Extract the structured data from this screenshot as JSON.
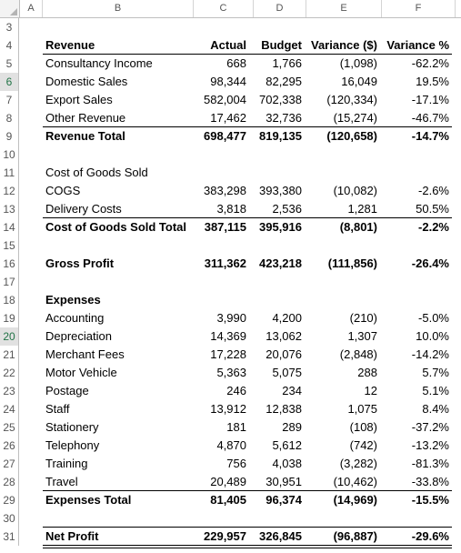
{
  "columns": [
    "A",
    "B",
    "C",
    "D",
    "E",
    "F"
  ],
  "rows": [
    {
      "n": "3"
    },
    {
      "n": "4",
      "bold": true,
      "label": "Revenue",
      "actual": "Actual",
      "budget": "Budget",
      "var": "Variance ($)",
      "pct": "Variance %"
    },
    {
      "n": "5",
      "label": "Consultancy Income",
      "actual": "668",
      "budget": "1,766",
      "var": "(1,098)",
      "pct": "-62.2%"
    },
    {
      "n": "6",
      "label": "Domestic Sales",
      "actual": "98,344",
      "budget": "82,295",
      "var": "16,049",
      "pct": "19.5%"
    },
    {
      "n": "7",
      "label": "Export Sales",
      "actual": "582,004",
      "budget": "702,338",
      "var": "(120,334)",
      "pct": "-17.1%"
    },
    {
      "n": "8",
      "label": "Other Revenue",
      "actual": "17,462",
      "budget": "32,736",
      "var": "(15,274)",
      "pct": "-46.7%"
    },
    {
      "n": "9",
      "bold": true,
      "label": "Revenue Total",
      "actual": "698,477",
      "budget": "819,135",
      "var": "(120,658)",
      "pct": "-14.7%"
    },
    {
      "n": "10"
    },
    {
      "n": "11",
      "label": "Cost of Goods Sold"
    },
    {
      "n": "12",
      "label": "COGS",
      "actual": "383,298",
      "budget": "393,380",
      "var": "(10,082)",
      "pct": "-2.6%"
    },
    {
      "n": "13",
      "label": "Delivery Costs",
      "actual": "3,818",
      "budget": "2,536",
      "var": "1,281",
      "pct": "50.5%"
    },
    {
      "n": "14",
      "bold": true,
      "label": "Cost of Goods Sold Total",
      "actual": "387,115",
      "budget": "395,916",
      "var": "(8,801)",
      "pct": "-2.2%"
    },
    {
      "n": "15"
    },
    {
      "n": "16",
      "bold": true,
      "label": "Gross Profit",
      "actual": "311,362",
      "budget": "423,218",
      "var": "(111,856)",
      "pct": "-26.4%"
    },
    {
      "n": "17"
    },
    {
      "n": "18",
      "bold": true,
      "label": "Expenses"
    },
    {
      "n": "19",
      "label": "Accounting",
      "actual": "3,990",
      "budget": "4,200",
      "var": "(210)",
      "pct": "-5.0%"
    },
    {
      "n": "20",
      "label": "Depreciation",
      "actual": "14,369",
      "budget": "13,062",
      "var": "1,307",
      "pct": "10.0%"
    },
    {
      "n": "21",
      "label": "Merchant Fees",
      "actual": "17,228",
      "budget": "20,076",
      "var": "(2,848)",
      "pct": "-14.2%"
    },
    {
      "n": "22",
      "label": "Motor Vehicle",
      "actual": "5,363",
      "budget": "5,075",
      "var": "288",
      "pct": "5.7%"
    },
    {
      "n": "23",
      "label": "Postage",
      "actual": "246",
      "budget": "234",
      "var": "12",
      "pct": "5.1%"
    },
    {
      "n": "24",
      "label": "Staff",
      "actual": "13,912",
      "budget": "12,838",
      "var": "1,075",
      "pct": "8.4%"
    },
    {
      "n": "25",
      "label": "Stationery",
      "actual": "181",
      "budget": "289",
      "var": "(108)",
      "pct": "-37.2%"
    },
    {
      "n": "26",
      "label": "Telephony",
      "actual": "4,870",
      "budget": "5,612",
      "var": "(742)",
      "pct": "-13.2%"
    },
    {
      "n": "27",
      "label": "Training",
      "actual": "756",
      "budget": "4,038",
      "var": "(3,282)",
      "pct": "-81.3%"
    },
    {
      "n": "28",
      "label": "Travel",
      "actual": "20,489",
      "budget": "30,951",
      "var": "(10,462)",
      "pct": "-33.8%"
    },
    {
      "n": "29",
      "bold": true,
      "label": "Expenses Total",
      "actual": "81,405",
      "budget": "96,374",
      "var": "(14,969)",
      "pct": "-15.5%"
    },
    {
      "n": "30"
    },
    {
      "n": "31",
      "bold": true,
      "label": "Net Profit",
      "actual": "229,957",
      "budget": "326,845",
      "var": "(96,887)",
      "pct": "-29.6%"
    }
  ],
  "selected_row_headers": [
    "6",
    "20"
  ]
}
